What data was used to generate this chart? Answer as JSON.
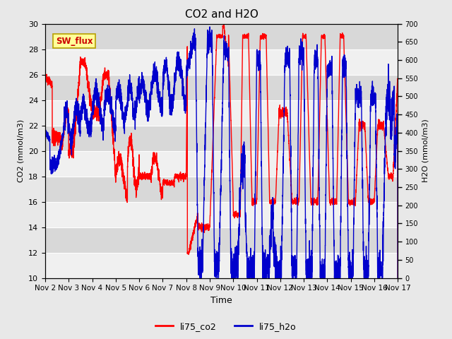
{
  "title": "CO2 and H2O",
  "xlabel": "Time",
  "ylabel_left": "CO2 (mmol/m3)",
  "ylabel_right": "H2O (mmol/m3)",
  "ylim_left": [
    10,
    30
  ],
  "ylim_right": [
    0,
    700
  ],
  "yticks_left": [
    10,
    12,
    14,
    16,
    18,
    20,
    22,
    24,
    26,
    28,
    30
  ],
  "yticks_right": [
    0,
    50,
    100,
    150,
    200,
    250,
    300,
    350,
    400,
    450,
    500,
    550,
    600,
    650,
    700
  ],
  "xtick_labels": [
    "Nov 2",
    "Nov 3",
    "Nov 4",
    "Nov 5",
    "Nov 6",
    "Nov 7",
    "Nov 8",
    "Nov 9",
    "Nov 10",
    "Nov 11",
    "Nov 12",
    "Nov 13",
    "Nov 14",
    "Nov 15",
    "Nov 16",
    "Nov 17"
  ],
  "color_co2": "#ff0000",
  "color_h2o": "#0000cc",
  "fig_bg": "#e8e8e8",
  "plot_bg_light": "#f0f0f0",
  "plot_bg_dark": "#d8d8d8",
  "sw_flux_label": "SW_flux",
  "sw_flux_bg": "#ffff99",
  "sw_flux_border": "#b8a000",
  "sw_flux_text": "#cc0000",
  "legend_co2": "li75_co2",
  "legend_h2o": "li75_h2o",
  "linewidth": 1.0,
  "n_days": 15,
  "points_per_day": 288
}
